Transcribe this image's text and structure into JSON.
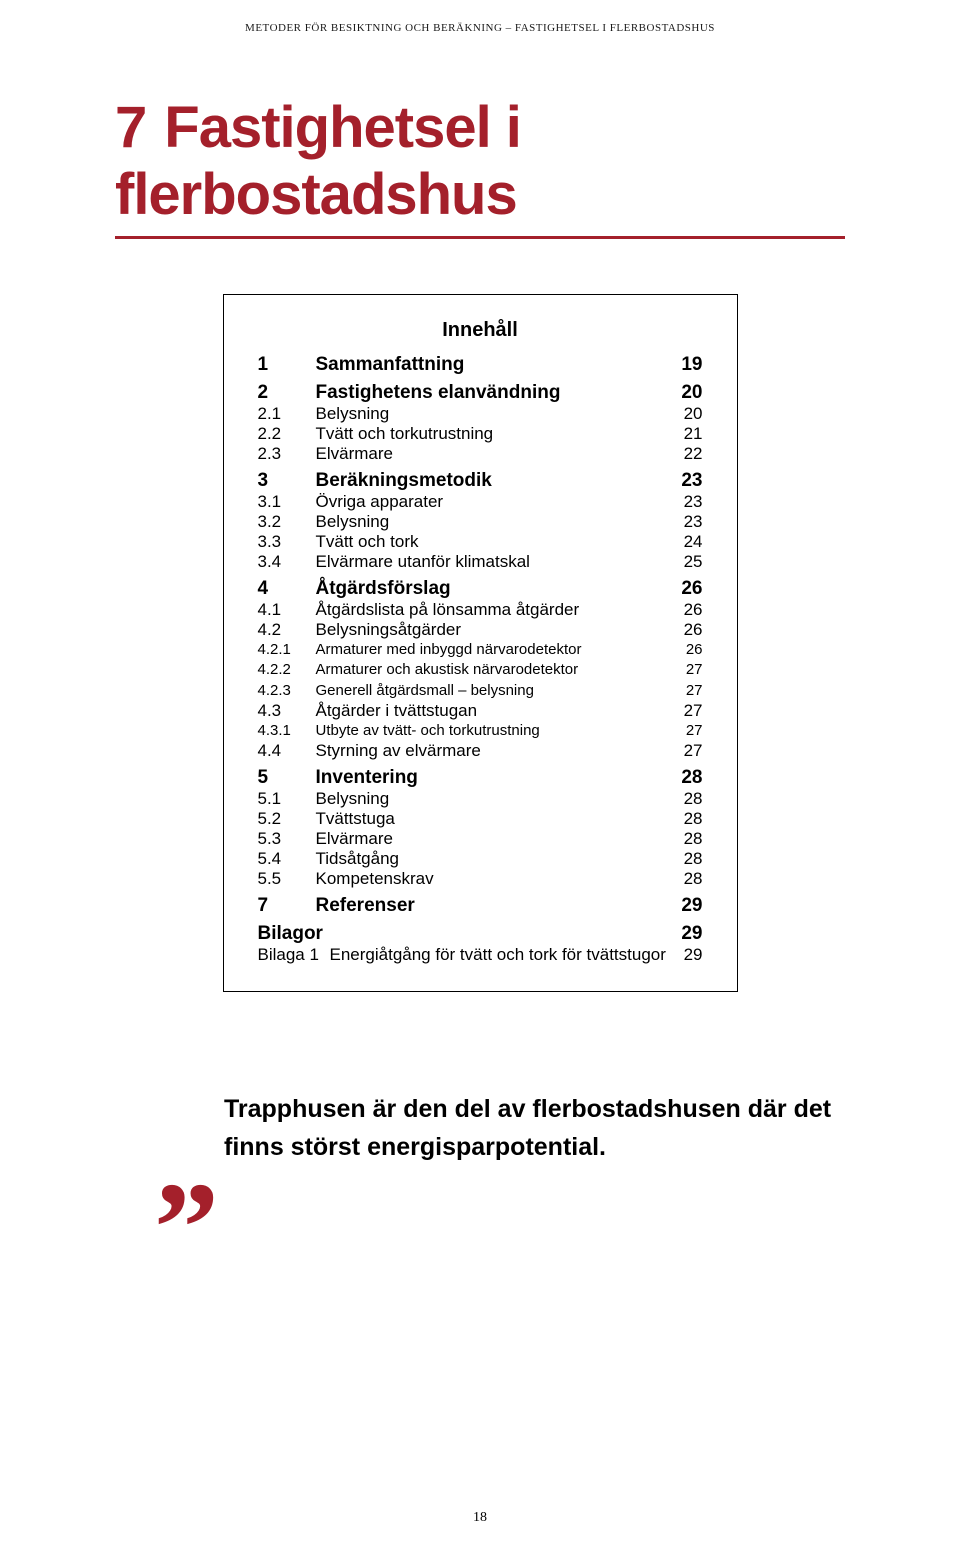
{
  "running_head": "METODER FÖR BESIKTNING OCH BERÄKNING – FASTIGHETSEL I FLERBOSTADSHUS",
  "chapter": {
    "number": "7",
    "title": "Fastighetsel i flerbostadshus"
  },
  "colors": {
    "accent": "#a4202b",
    "text": "#1a1a1a"
  },
  "toc": {
    "title": "Innehåll",
    "items": [
      {
        "level": 1,
        "num": "1",
        "label": "Sammanfattning",
        "page": "19"
      },
      {
        "level": 1,
        "num": "2",
        "label": "Fastighetens elanvändning",
        "page": "20"
      },
      {
        "level": 2,
        "num": "2.1",
        "label": "Belysning",
        "page": "20"
      },
      {
        "level": 2,
        "num": "2.2",
        "label": "Tvätt och torkutrustning",
        "page": "21"
      },
      {
        "level": 2,
        "num": "2.3",
        "label": "Elvärmare",
        "page": "22"
      },
      {
        "level": 1,
        "num": "3",
        "label": "Beräkningsmetodik",
        "page": "23"
      },
      {
        "level": 2,
        "num": "3.1",
        "label": "Övriga apparater",
        "page": "23"
      },
      {
        "level": 2,
        "num": "3.2",
        "label": "Belysning",
        "page": "23"
      },
      {
        "level": 2,
        "num": "3.3",
        "label": "Tvätt och tork",
        "page": "24"
      },
      {
        "level": 2,
        "num": "3.4",
        "label": "Elvärmare utanför klimatskal",
        "page": "25"
      },
      {
        "level": 1,
        "num": "4",
        "label": "Åtgärdsförslag",
        "page": "26"
      },
      {
        "level": 2,
        "num": "4.1",
        "label": "Åtgärdslista på lönsamma åtgärder",
        "page": "26"
      },
      {
        "level": 2,
        "num": "4.2",
        "label": "Belysningsåtgärder",
        "page": "26"
      },
      {
        "level": 3,
        "num": "4.2.1",
        "label": "Armaturer med inbyggd närvarodetektor",
        "page": "26"
      },
      {
        "level": 3,
        "num": "4.2.2",
        "label": "Armaturer och akustisk närvarodetektor",
        "page": "27"
      },
      {
        "level": 3,
        "num": "4.2.3",
        "label": "Generell åtgärdsmall – belysning",
        "page": "27"
      },
      {
        "level": 2,
        "num": "4.3",
        "label": "Åtgärder i tvättstugan",
        "page": "27"
      },
      {
        "level": 3,
        "num": "4.3.1",
        "label": "Utbyte av tvätt- och torkutrustning",
        "page": "27"
      },
      {
        "level": 2,
        "num": "4.4",
        "label": "Styrning av elvärmare",
        "page": "27"
      },
      {
        "level": 1,
        "num": "5",
        "label": "Inventering",
        "page": "28"
      },
      {
        "level": 2,
        "num": "5.1",
        "label": "Belysning",
        "page": "28"
      },
      {
        "level": 2,
        "num": "5.2",
        "label": "Tvättstuga",
        "page": "28"
      },
      {
        "level": 2,
        "num": "5.3",
        "label": "Elvärmare",
        "page": "28"
      },
      {
        "level": 2,
        "num": "5.4",
        "label": "Tidsåtgång",
        "page": "28"
      },
      {
        "level": 2,
        "num": "5.5",
        "label": "Kompetenskrav",
        "page": "28"
      },
      {
        "level": 1,
        "num": "7",
        "label": "Referenser",
        "page": "29"
      }
    ],
    "bilagor": {
      "heading": "Bilagor",
      "heading_page": "29",
      "rows": [
        {
          "num": "Bilaga 1",
          "label": "Energiåtgång för tvätt och tork för tvättstugor",
          "page": "29"
        }
      ]
    }
  },
  "pull_quote": "Trapphusen är den del av flerbostadshusen där det finns störst energisparpotential.",
  "quote_marks": "„",
  "page_number": "18"
}
